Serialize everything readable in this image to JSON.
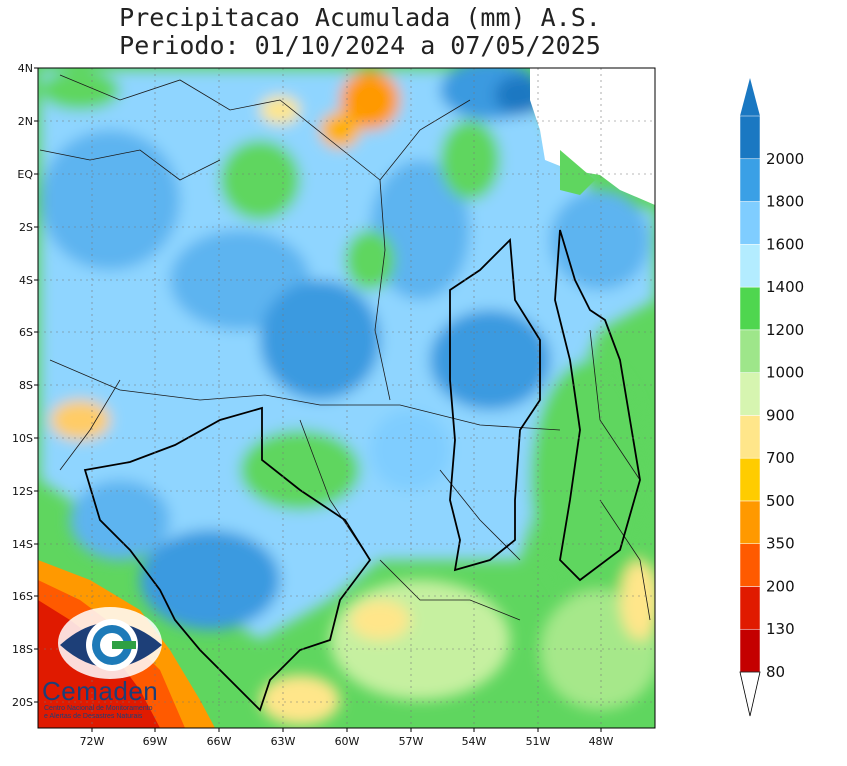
{
  "title": {
    "line1": "Precipitacao Acumulada (mm) A.S.",
    "line2": "Periodo: 01/10/2024 a 07/05/2025"
  },
  "axes": {
    "lat_labels": [
      "4N",
      "2N",
      "EQ",
      "2S",
      "4S",
      "6S",
      "8S",
      "10S",
      "12S",
      "14S",
      "16S",
      "18S",
      "20S"
    ],
    "lon_labels": [
      "72W",
      "69W",
      "66W",
      "63W",
      "60W",
      "57W",
      "54W",
      "51W",
      "48W"
    ]
  },
  "legend": {
    "levels": [
      "80",
      "130",
      "200",
      "350",
      "500",
      "700",
      "900",
      "1000",
      "1200",
      "1400",
      "1600",
      "1800",
      "2000"
    ],
    "colors": [
      "#c40000",
      "#e01a00",
      "#ff5a00",
      "#ff9900",
      "#ffcc00",
      "#ffe68a",
      "#d6f5b0",
      "#9ee68a",
      "#4fd64f",
      "#b3ecff",
      "#7fcdff",
      "#3aa0e6",
      "#1a78c2"
    ]
  },
  "logo": {
    "name": "Cemaden",
    "subtitle_line1": "Centro Nacional de Monitoramento",
    "subtitle_line2": "e Alertas de Desastres Naturais"
  }
}
